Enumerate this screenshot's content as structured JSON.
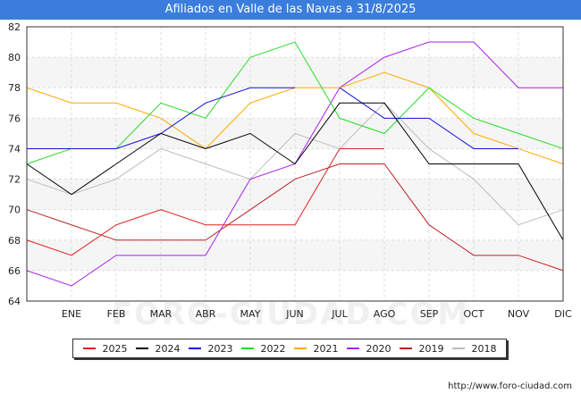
{
  "header": {
    "title": "Afiliados en Valle de las Navas a 31/8/2025"
  },
  "watermark": "FORO-CIUDAD.COM",
  "source": "http://www.foro-ciudad.com",
  "chart_data": {
    "type": "line",
    "title": "Afiliados en Valle de las Navas a 31/8/2025",
    "categories": [
      "",
      "ENE",
      "FEB",
      "MAR",
      "ABR",
      "MAY",
      "JUN",
      "JUL",
      "AGO",
      "SEP",
      "OCT",
      "NOV",
      "DIC"
    ],
    "ylim": [
      64,
      82
    ],
    "yticks": [
      64,
      66,
      68,
      70,
      72,
      74,
      76,
      78,
      80,
      82
    ],
    "grid": true,
    "legend_position": "bottom",
    "series": [
      {
        "name": "2025",
        "color": "#dd2222",
        "values": [
          68,
          67,
          69,
          70,
          69,
          69,
          69,
          74,
          74,
          null,
          null,
          null,
          null
        ]
      },
      {
        "name": "2024",
        "color": "#000000",
        "values": [
          73,
          71,
          73,
          75,
          74,
          75,
          73,
          77,
          77,
          73,
          73,
          73,
          68
        ]
      },
      {
        "name": "2023",
        "color": "#1111dd",
        "values": [
          74,
          74,
          74,
          75,
          77,
          78,
          78,
          null,
          null,
          null,
          null,
          null,
          null
        ]
      },
      {
        "name": "2023b",
        "legend": false,
        "color": "#1111dd",
        "values": [
          null,
          null,
          null,
          null,
          null,
          null,
          null,
          78,
          76,
          76,
          74,
          74,
          null
        ]
      },
      {
        "name": "2022",
        "color": "#22dd22",
        "values": [
          73,
          74,
          74,
          77,
          76,
          80,
          81,
          76,
          75,
          78,
          76,
          75,
          74
        ]
      },
      {
        "name": "2021",
        "color": "#ffaa00",
        "values": [
          78,
          77,
          77,
          76,
          74,
          77,
          78,
          78,
          79,
          78,
          75,
          74,
          73
        ]
      },
      {
        "name": "2020",
        "color": "#aa22ee",
        "values": [
          66,
          65,
          67,
          67,
          67,
          72,
          73,
          78,
          80,
          81,
          81,
          78,
          78
        ]
      },
      {
        "name": "2019",
        "color": "#bb2222",
        "values": [
          70,
          69,
          68,
          68,
          68,
          70,
          72,
          73,
          73,
          69,
          67,
          67,
          66
        ]
      },
      {
        "name": "2018",
        "color": "#bbbbbb",
        "values": [
          72,
          71,
          72,
          74,
          73,
          72,
          75,
          74,
          77,
          74,
          72,
          69,
          70
        ]
      }
    ]
  }
}
